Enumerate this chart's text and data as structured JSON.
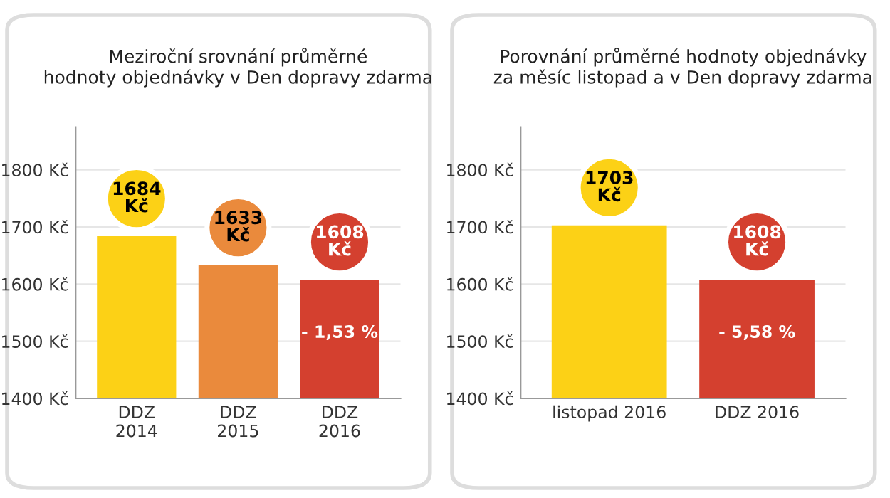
{
  "chart_data": [
    {
      "type": "bar",
      "title": "Meziroční srovnání průměrné\nhodnoty objednávky v Den dopravy zdarma",
      "categories": [
        "DDZ\n2014",
        "DDZ\n2015",
        "DDZ\n2016"
      ],
      "values": [
        1684,
        1633,
        1608
      ],
      "colors": [
        "#fcd116",
        "#ea8a3c",
        "#d4402f"
      ],
      "value_labels": [
        "1684\nKč",
        "1633\nKč",
        "1608\nKč"
      ],
      "ylim": [
        1400,
        1875
      ],
      "yticks": [
        {
          "value": 1400,
          "label": "1400 Kč"
        },
        {
          "value": 1500,
          "label": "1500 Kč"
        },
        {
          "value": 1600,
          "label": "1600 Kč"
        },
        {
          "value": 1700,
          "label": "1700 Kč"
        },
        {
          "value": 1800,
          "label": "1800 Kč"
        }
      ],
      "grid": "y",
      "annotations": [
        {
          "text": "- 1,53 %",
          "x": "DDZ\n2016",
          "y": 1608
        }
      ]
    },
    {
      "type": "bar",
      "title": "Porovnání průměrné hodnoty objednávky\nza měsíc listopad a v Den dopravy zdarma",
      "categories": [
        "listopad 2016",
        "DDZ 2016"
      ],
      "values": [
        1703,
        1608
      ],
      "colors": [
        "#fcd116",
        "#d4402f"
      ],
      "value_labels": [
        "1703\nKč",
        "1608\nKč"
      ],
      "ylim": [
        1400,
        1875
      ],
      "yticks": [
        {
          "value": 1400,
          "label": "1400 Kč"
        },
        {
          "value": 1500,
          "label": "1500 Kč"
        },
        {
          "value": 1600,
          "label": "1600 Kč"
        },
        {
          "value": 1700,
          "label": "1700 Kč"
        },
        {
          "value": 1800,
          "label": "1800 Kč"
        }
      ],
      "grid": "y",
      "annotations": [
        {
          "text": "- 5,58 %",
          "x": "DDZ 2016",
          "y": 1608
        }
      ]
    }
  ]
}
